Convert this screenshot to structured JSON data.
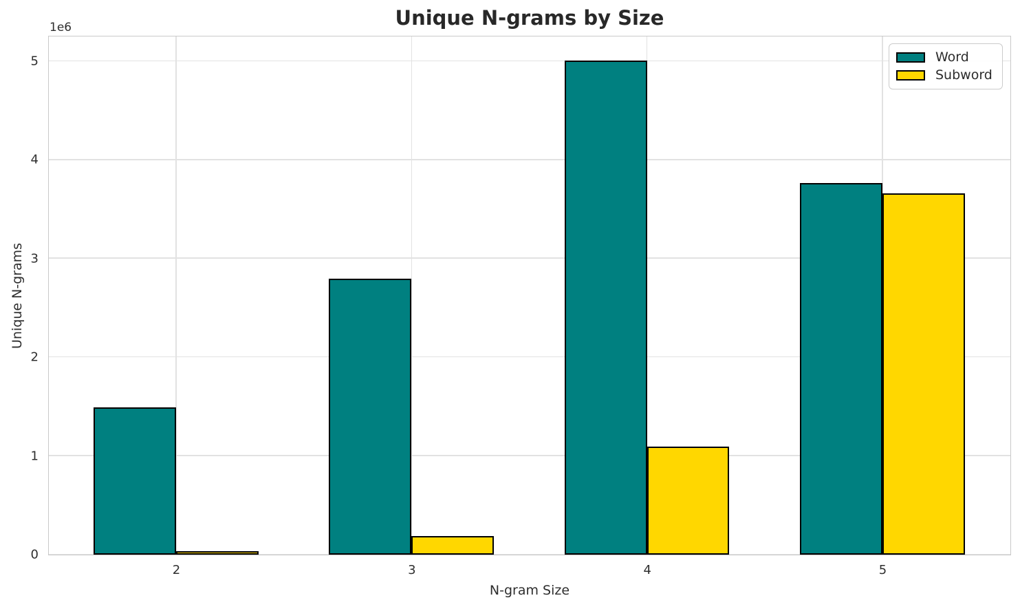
{
  "chart_data": {
    "type": "bar",
    "title": "Unique N-grams by Size",
    "xlabel": "N-gram Size",
    "ylabel": "Unique N-grams",
    "offset_text": "1e6",
    "categories": [
      "2",
      "3",
      "4",
      "5"
    ],
    "series": [
      {
        "name": "Word",
        "color": "#008080",
        "values": [
          1490000,
          2790000,
          5000000,
          3760000
        ]
      },
      {
        "name": "Subword",
        "color": "#FFD700",
        "values": [
          30000,
          185000,
          1090000,
          3660000
        ]
      }
    ],
    "bar_width": 0.35,
    "bar_edge_color": "#000000",
    "xlim": [
      -0.5417,
      3.5417
    ],
    "ylim": [
      0,
      5250000
    ],
    "y_ticks": [
      0,
      1,
      2,
      3,
      4,
      5
    ],
    "y_tick_scale": 1000000,
    "grid": true,
    "legend_position": "upper right"
  }
}
